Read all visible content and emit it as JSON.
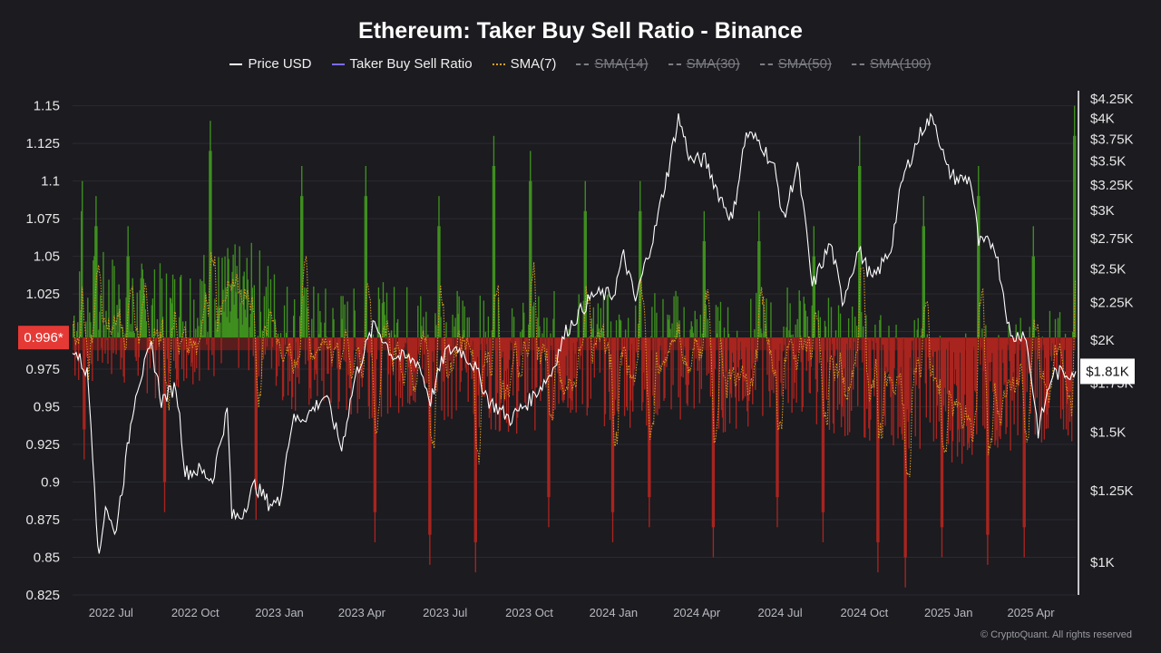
{
  "title": "Ethereum: Taker Buy Sell Ratio - Binance",
  "legend": [
    {
      "label": "Price USD",
      "color": "#ffffff",
      "style": "solid",
      "enabled": true
    },
    {
      "label": "Taker Buy Sell Ratio",
      "color": "#7b6cf0",
      "style": "solid",
      "enabled": true
    },
    {
      "label": "SMA(7)",
      "color": "#e0a020",
      "style": "dotted",
      "enabled": true
    },
    {
      "label": "SMA(14)",
      "color": "#7d7d85",
      "style": "dashed",
      "enabled": false
    },
    {
      "label": "SMA(30)",
      "color": "#7d7d85",
      "style": "dashed",
      "enabled": false
    },
    {
      "label": "SMA(50)",
      "color": "#7d7d85",
      "style": "dashed",
      "enabled": false
    },
    {
      "label": "SMA(100)",
      "color": "#7d7d85",
      "style": "dashed",
      "enabled": false
    }
  ],
  "copyright": "© CryptoQuant. All rights reserved",
  "colors": {
    "background": "#1b1b20",
    "above": "#3f8f1f",
    "below": "#a8241f",
    "baseline_fill": "#8a1f1a",
    "price": "#ffffff",
    "sma7": "#e0a020",
    "marker": "#e53935"
  },
  "chart_data": {
    "type": "bar",
    "x_range": [
      "2022-05-20",
      "2025-05-20"
    ],
    "x_ticks": [
      "2022 Jul",
      "2022 Oct",
      "2023 Jan",
      "2023 Apr",
      "2023 Jul",
      "2023 Oct",
      "2024 Jan",
      "2024 Apr",
      "2024 Jul",
      "2024 Oct",
      "2025 Jan",
      "2025 Apr"
    ],
    "x_tick_dates": [
      "2022-07-01",
      "2022-10-01",
      "2023-01-01",
      "2023-04-01",
      "2023-07-01",
      "2023-10-01",
      "2024-01-01",
      "2024-04-01",
      "2024-07-01",
      "2024-10-01",
      "2025-01-01",
      "2025-04-01"
    ],
    "left_axis": {
      "ylim": [
        0.825,
        1.16
      ],
      "ticks": [
        0.825,
        0.85,
        0.875,
        0.9,
        0.925,
        0.95,
        0.975,
        1.0,
        1.025,
        1.05,
        1.075,
        1.1,
        1.125,
        1.15
      ],
      "tick_labels": [
        "0.825",
        "0.85",
        "0.875",
        "0.9",
        "0.925",
        "0.95",
        "0.975",
        "",
        "1.025",
        "1.05",
        "1.075",
        "1.1",
        "1.125",
        "1.15"
      ],
      "baseline": 0.996,
      "baseline_label": "0.996*"
    },
    "right_axis": {
      "scale": "log",
      "ylim": [
        900,
        4350
      ],
      "ticks": [
        1000,
        1250,
        1500,
        1750,
        2000,
        2250,
        2500,
        2750,
        3000,
        3250,
        3500,
        3750,
        4000,
        4250
      ],
      "tick_labels": [
        "$1K",
        "$1.25K",
        "$1.5K",
        "$1.75K",
        "$2K",
        "$2.25K",
        "$2.5K",
        "$2.75K",
        "$3K",
        "$3.25K",
        "$3.5K",
        "$3.75K",
        "$4K",
        "$4.25K"
      ],
      "current_label": "$1.81K",
      "current_value": 1810
    },
    "ratio_series": {
      "name": "Taker Buy Sell Ratio",
      "x_start": "2022-05-20",
      "x_end": "2025-05-20",
      "anchors": [
        [
          0,
          1.005
        ],
        [
          40,
          1.01
        ],
        [
          90,
          1.0
        ],
        [
          140,
          1.012
        ],
        [
          200,
          1.015
        ],
        [
          240,
          0.99
        ],
        [
          300,
          0.985
        ],
        [
          360,
          0.99
        ],
        [
          420,
          0.985
        ],
        [
          480,
          0.975
        ],
        [
          540,
          0.985
        ],
        [
          600,
          0.98
        ],
        [
          660,
          0.985
        ],
        [
          720,
          0.975
        ],
        [
          780,
          0.99
        ],
        [
          840,
          0.975
        ],
        [
          880,
          0.97
        ],
        [
          930,
          0.965
        ],
        [
          970,
          0.955
        ],
        [
          1020,
          0.965
        ],
        [
          1060,
          0.97
        ],
        [
          1100,
          0.97
        ]
      ],
      "spikes_up": [
        [
          10,
          1.1
        ],
        [
          25,
          1.09
        ],
        [
          60,
          1.07
        ],
        [
          150,
          1.14
        ],
        [
          200,
          1.12
        ],
        [
          250,
          1.11
        ],
        [
          320,
          1.11
        ],
        [
          400,
          1.09
        ],
        [
          460,
          1.13
        ],
        [
          500,
          1.12
        ],
        [
          560,
          1.1
        ],
        [
          620,
          1.1
        ],
        [
          690,
          1.08
        ],
        [
          750,
          1.08
        ],
        [
          810,
          1.07
        ],
        [
          860,
          1.13
        ],
        [
          930,
          1.09
        ],
        [
          990,
          1.11
        ],
        [
          1050,
          1.07
        ],
        [
          1095,
          1.15
        ]
      ],
      "spikes_down": [
        [
          12,
          0.915
        ],
        [
          100,
          0.88
        ],
        [
          200,
          0.875
        ],
        [
          330,
          0.86
        ],
        [
          390,
          0.845
        ],
        [
          440,
          0.84
        ],
        [
          520,
          0.87
        ],
        [
          590,
          0.86
        ],
        [
          630,
          0.87
        ],
        [
          700,
          0.85
        ],
        [
          770,
          0.87
        ],
        [
          820,
          0.86
        ],
        [
          880,
          0.84
        ],
        [
          910,
          0.83
        ],
        [
          950,
          0.85
        ],
        [
          1000,
          0.845
        ],
        [
          1040,
          0.85
        ],
        [
          1090,
          0.94
        ]
      ]
    },
    "price_series": {
      "name": "Price USD",
      "points": [
        [
          "2022-05-20",
          1950
        ],
        [
          "2022-06-05",
          1800
        ],
        [
          "2022-06-15",
          1150
        ],
        [
          "2022-06-18",
          1000
        ],
        [
          "2022-06-25",
          1200
        ],
        [
          "2022-07-05",
          1080
        ],
        [
          "2022-07-15",
          1300
        ],
        [
          "2022-07-28",
          1700
        ],
        [
          "2022-08-14",
          1950
        ],
        [
          "2022-08-25",
          1650
        ],
        [
          "2022-09-10",
          1730
        ],
        [
          "2022-09-20",
          1320
        ],
        [
          "2022-10-05",
          1330
        ],
        [
          "2022-10-20",
          1290
        ],
        [
          "2022-11-05",
          1600
        ],
        [
          "2022-11-10",
          1150
        ],
        [
          "2022-11-20",
          1150
        ],
        [
          "2022-12-05",
          1270
        ],
        [
          "2022-12-20",
          1200
        ],
        [
          "2023-01-01",
          1200
        ],
        [
          "2023-01-15",
          1550
        ],
        [
          "2023-02-01",
          1580
        ],
        [
          "2023-02-20",
          1680
        ],
        [
          "2023-03-10",
          1420
        ],
        [
          "2023-03-25",
          1780
        ],
        [
          "2023-04-15",
          2100
        ],
        [
          "2023-05-05",
          1900
        ],
        [
          "2023-06-01",
          1870
        ],
        [
          "2023-06-15",
          1650
        ],
        [
          "2023-07-01",
          1920
        ],
        [
          "2023-07-15",
          1950
        ],
        [
          "2023-08-01",
          1850
        ],
        [
          "2023-08-18",
          1650
        ],
        [
          "2023-09-10",
          1560
        ],
        [
          "2023-10-01",
          1650
        ],
        [
          "2023-10-25",
          1800
        ],
        [
          "2023-11-10",
          2050
        ],
        [
          "2023-12-10",
          2300
        ],
        [
          "2024-01-01",
          2300
        ],
        [
          "2024-01-12",
          2600
        ],
        [
          "2024-01-25",
          2250
        ],
        [
          "2024-02-15",
          2800
        ],
        [
          "2024-03-01",
          3400
        ],
        [
          "2024-03-12",
          4000
        ],
        [
          "2024-03-25",
          3500
        ],
        [
          "2024-04-10",
          3500
        ],
        [
          "2024-04-25",
          3150
        ],
        [
          "2024-05-10",
          2900
        ],
        [
          "2024-05-25",
          3800
        ],
        [
          "2024-06-10",
          3700
        ],
        [
          "2024-06-25",
          3400
        ],
        [
          "2024-07-05",
          2900
        ],
        [
          "2024-07-20",
          3450
        ],
        [
          "2024-08-05",
          2350
        ],
        [
          "2024-08-25",
          2700
        ],
        [
          "2024-09-07",
          2250
        ],
        [
          "2024-09-25",
          2650
        ],
        [
          "2024-10-10",
          2400
        ],
        [
          "2024-10-30",
          2650
        ],
        [
          "2024-11-12",
          3300
        ],
        [
          "2024-12-05",
          3900
        ],
        [
          "2024-12-16",
          4000
        ],
        [
          "2024-12-30",
          3400
        ],
        [
          "2025-01-10",
          3300
        ],
        [
          "2025-01-25",
          3300
        ],
        [
          "2025-02-03",
          2700
        ],
        [
          "2025-02-20",
          2700
        ],
        [
          "2025-03-10",
          2000
        ],
        [
          "2025-03-25",
          2050
        ],
        [
          "2025-04-09",
          1500
        ],
        [
          "2025-04-25",
          1800
        ],
        [
          "2025-05-10",
          1800
        ],
        [
          "2025-05-20",
          1810
        ]
      ]
    },
    "sma_series": {
      "name": "SMA(7)",
      "window": 7
    }
  }
}
